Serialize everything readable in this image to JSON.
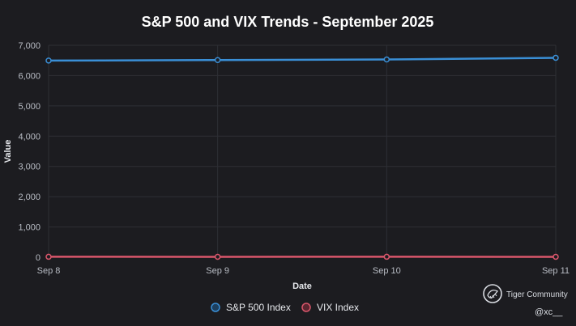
{
  "chart_data": {
    "type": "line",
    "title": "S&P 500 and VIX Trends - September 2025",
    "xlabel": "Date",
    "ylabel": "Value",
    "categories": [
      "Sep 8",
      "Sep 9",
      "Sep 10",
      "Sep 11"
    ],
    "ylim": [
      0,
      7000
    ],
    "yticks": [
      0,
      1000,
      2000,
      3000,
      4000,
      5000,
      6000,
      7000
    ],
    "ytick_labels": [
      "0",
      "1,000",
      "2,000",
      "3,000",
      "4,000",
      "5,000",
      "6,000",
      "7,000"
    ],
    "grid": true,
    "legend_position": "bottom",
    "series": [
      {
        "name": "S&P 500 Index",
        "values": [
          6495,
          6512,
          6532,
          6587
        ],
        "color": "#3a8fd6"
      },
      {
        "name": "VIX Index",
        "values": [
          15.1,
          15.0,
          15.3,
          14.7
        ],
        "color": "#d9566b"
      }
    ]
  },
  "watermark": {
    "brand": "Tiger Community",
    "handle": "@xc__",
    "icon": "tiger-community-logo-icon"
  },
  "colors": {
    "background": "#1c1c20",
    "grid": "#2e2f35"
  }
}
